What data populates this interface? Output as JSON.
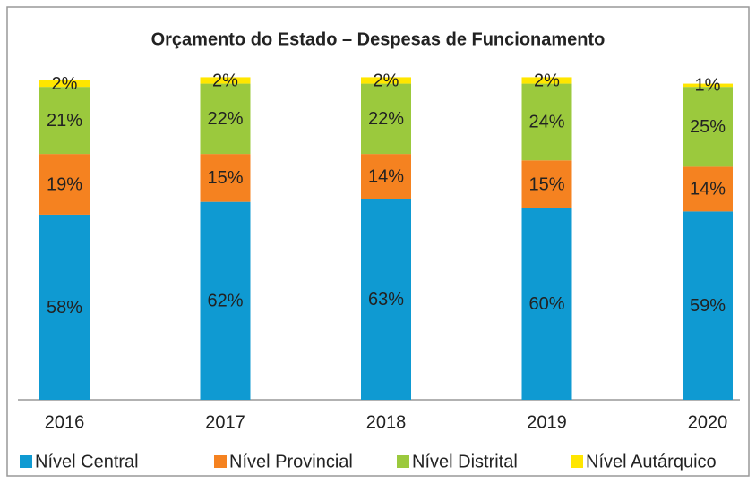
{
  "chart_data": {
    "type": "bar",
    "stacked": true,
    "title": "Orçamento do Estado – Despesas de Funcionamento",
    "categories": [
      "2016",
      "2017",
      "2018",
      "2019",
      "2020"
    ],
    "series": [
      {
        "name": "Nível Central",
        "color": "#0f9ad2",
        "values": [
          58,
          62,
          63,
          60,
          59
        ],
        "value_labels": [
          "58%",
          "62%",
          "63%",
          "60%",
          "59%"
        ]
      },
      {
        "name": "Nível Provincial",
        "color": "#f58220",
        "values": [
          19,
          15,
          14,
          15,
          14
        ],
        "value_labels": [
          "19%",
          "15%",
          "14%",
          "15%",
          "14%"
        ]
      },
      {
        "name": "Nível Distrital",
        "color": "#9bc93d",
        "values": [
          21,
          22,
          22,
          24,
          25
        ],
        "value_labels": [
          "21%",
          "22%",
          "22%",
          "24%",
          "25%"
        ]
      },
      {
        "name": "Nível Autárquico",
        "color": "#ffe600",
        "values": [
          2,
          2,
          2,
          2,
          1
        ],
        "value_labels": [
          "2%",
          "2%",
          "2%",
          "2%",
          "1%"
        ]
      }
    ],
    "ylim": [
      0,
      100
    ],
    "legend": "bottom"
  }
}
